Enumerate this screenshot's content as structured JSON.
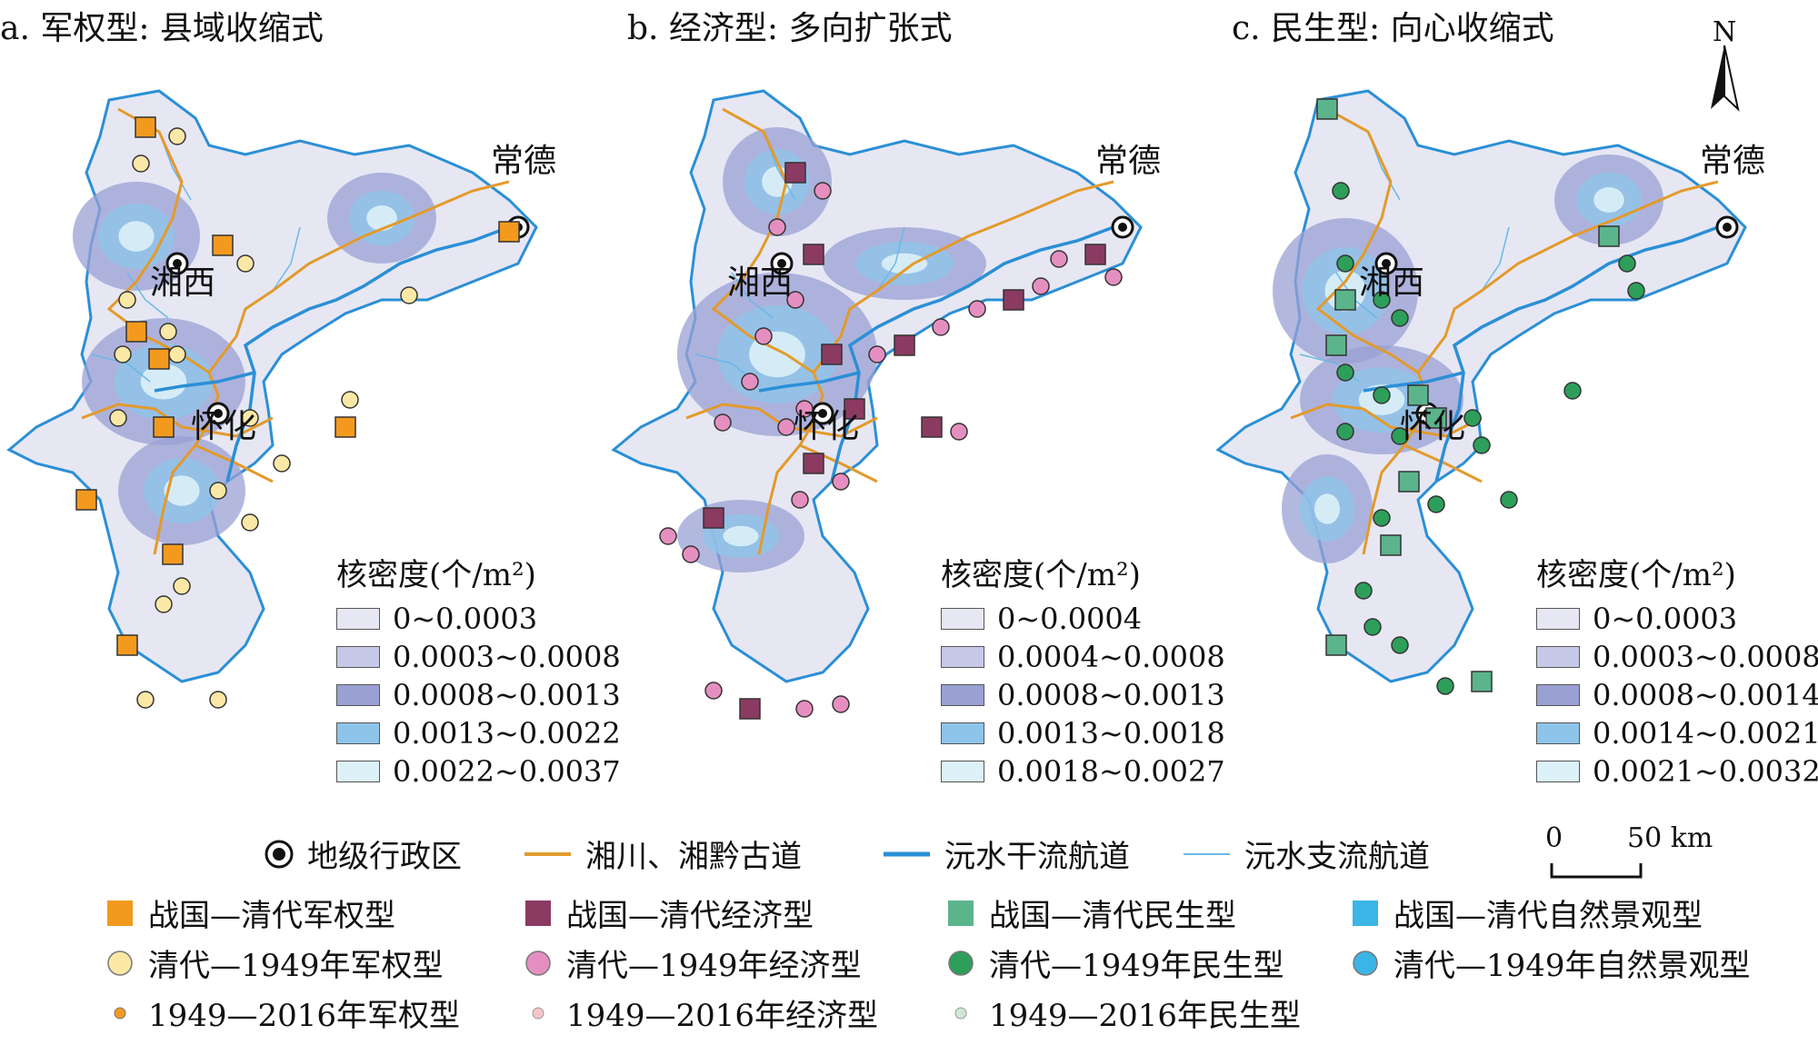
{
  "panels": [
    {
      "title": "a. 军权型: 县域收缩式",
      "cities": [
        "湘西",
        "怀化",
        "常德"
      ],
      "density_title": "核密度(个/m²)",
      "density_classes": [
        "0~0.0003",
        "0.0003~0.0008",
        "0.0008~0.0013",
        "0.0013~0.0022",
        "0.0022~0.0037"
      ]
    },
    {
      "title": "b. 经济型: 多向扩张式",
      "cities": [
        "湘西",
        "怀化",
        "常德"
      ],
      "density_title": "核密度(个/m²)",
      "density_classes": [
        "0~0.0004",
        "0.0004~0.0008",
        "0.0008~0.0013",
        "0.0013~0.0018",
        "0.0018~0.0027"
      ]
    },
    {
      "title": "c. 民生型: 向心收缩式",
      "cities": [
        "湘西",
        "怀化",
        "常德"
      ],
      "density_title": "核密度(个/m²)",
      "density_classes": [
        "0~0.0003",
        "0.0003~0.0008",
        "0.0008~0.0014",
        "0.0014~0.0021",
        "0.0021~0.0032"
      ]
    }
  ],
  "density_colors": [
    "#e6e7f3",
    "#c5c8e6",
    "#9aa0d4",
    "#8fc4ea",
    "#dcf1f8"
  ],
  "north_label": "N",
  "scale": {
    "zero": "0",
    "distance": "50 km"
  },
  "legend": {
    "admin": "地级行政区",
    "road": "湘川、湘黔古道",
    "main_river": "沅水干流航道",
    "branch_river": "沅水支流航道",
    "military_old": "战国—清代军权型",
    "economic_old": "战国—清代经济型",
    "livelihood_old": "战国—清代民生型",
    "nature_old": "战国—清代自然景观型",
    "military_mid": "清代—1949年军权型",
    "economic_mid": "清代—1949年经济型",
    "livelihood_mid": "清代—1949年民生型",
    "nature_mid": "清代—1949年自然景观型",
    "military_new": "1949—2016年军权型",
    "economic_new": "1949—2016年经济型",
    "livelihood_new": "1949—2016年民生型"
  },
  "colors": {
    "road": "#e39a2b",
    "main_river": "#2b8fd6",
    "branch_river": "#6ab8e6",
    "military": "#f39a1e",
    "military_light": "#fbe8a6",
    "economic": "#8b3a62",
    "economic_light": "#e58fc0",
    "livelihood": "#5bb48c",
    "livelihood_light": "#2e9e5b",
    "nature": "#3ab5e6"
  }
}
